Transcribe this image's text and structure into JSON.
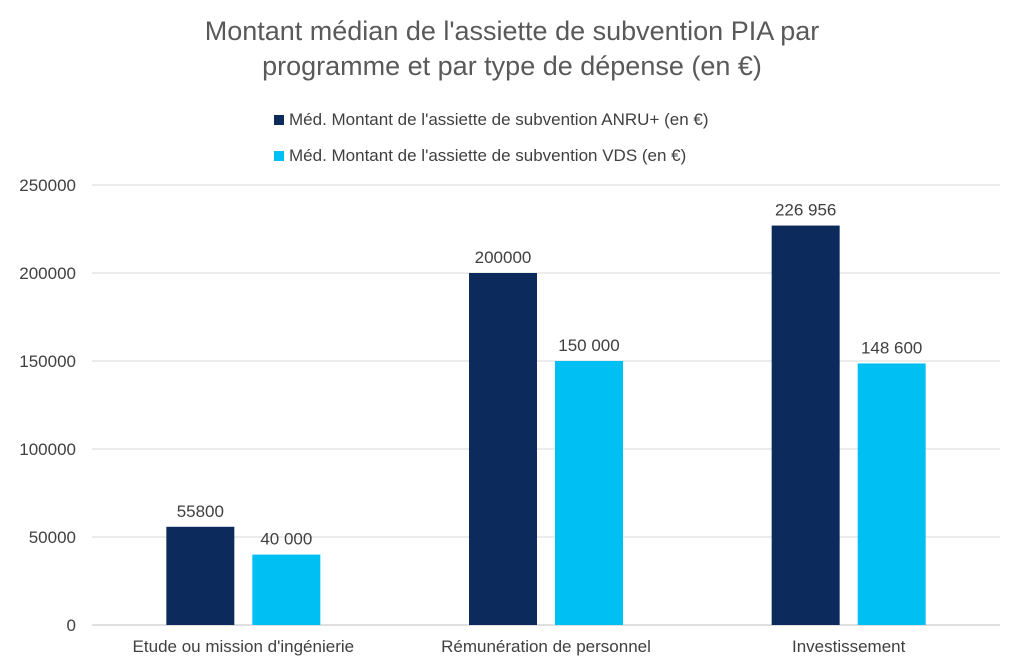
{
  "chart_data": {
    "type": "bar",
    "title_lines": [
      "Montant médian de l'assiette de subvention PIA par",
      "programme et par type de dépense (en €)"
    ],
    "categories": [
      "Etude ou mission d'ingénierie",
      "Rémunération de personnel",
      "Investissement"
    ],
    "series": [
      {
        "name": "Méd. Montant de l'assiette de subvention ANRU+ (en €)",
        "color": "#0d2a5c",
        "values": [
          55800,
          200000,
          226956
        ],
        "labels": [
          "55800",
          "200000",
          "226 956"
        ]
      },
      {
        "name": "Méd. Montant de l'assiette de subvention VDS (en €)",
        "color": "#00bff3",
        "values": [
          40000,
          150000,
          148600
        ],
        "labels": [
          "40 000",
          "150 000",
          "148 600"
        ]
      }
    ],
    "ylim": [
      0,
      250000
    ],
    "yticks": [
      "0",
      "50000",
      "100000",
      "150000",
      "200000",
      "250000"
    ],
    "grid": true,
    "legend_position": "top"
  }
}
